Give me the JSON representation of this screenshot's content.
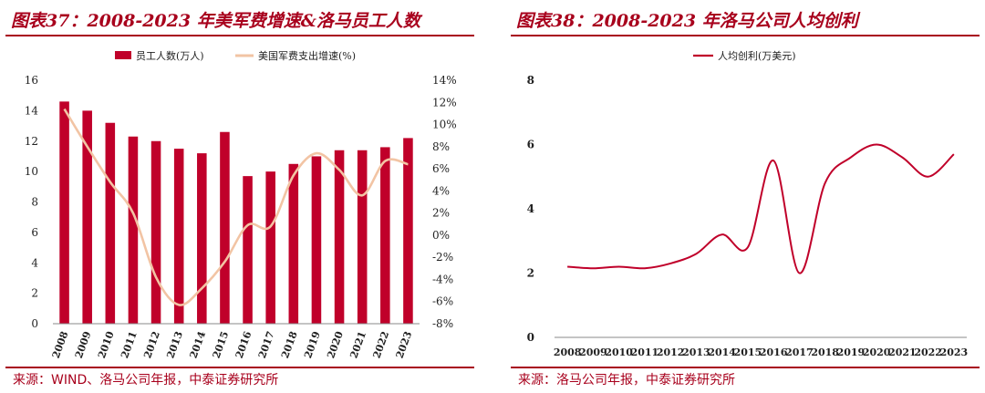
{
  "left": {
    "title": "图表37：2008-2023 年美军费增速&洛马员工人数",
    "source": "来源：WIND、洛马公司年报，中泰证券研究所",
    "chart_data": {
      "type": "bar+line",
      "categories": [
        "2008",
        "2009",
        "2010",
        "2011",
        "2012",
        "2013",
        "2014",
        "2015",
        "2016",
        "2017",
        "2018",
        "2019",
        "2020",
        "2021",
        "2022",
        "2023"
      ],
      "series": [
        {
          "name": "员工人数(万人)",
          "type": "bar",
          "axis": "left",
          "color": "#c0002a",
          "values": [
            14.6,
            14.0,
            13.2,
            12.3,
            12.0,
            11.5,
            11.2,
            12.6,
            9.7,
            10.0,
            10.5,
            11.0,
            11.4,
            11.4,
            11.6,
            12.2
          ]
        },
        {
          "name": "美国军费支出增速(%)",
          "type": "line",
          "axis": "right",
          "color": "#f2c4a4",
          "values": [
            11.4,
            8.0,
            4.8,
            2.0,
            -3.8,
            -6.3,
            -4.8,
            -2.4,
            0.9,
            0.8,
            5.4,
            7.4,
            5.9,
            3.6,
            6.7,
            6.4
          ]
        }
      ],
      "yleft": {
        "min": 0,
        "max": 16,
        "ticks": [
          "0",
          "2",
          "4",
          "6",
          "8",
          "10",
          "12",
          "14",
          "16"
        ]
      },
      "yright": {
        "min": -8,
        "max": 14,
        "ticks": [
          "-8%",
          "-6%",
          "-4%",
          "-2%",
          "0%",
          "2%",
          "4%",
          "6%",
          "8%",
          "10%",
          "12%",
          "14%"
        ]
      },
      "legend": "top"
    }
  },
  "right": {
    "title": "图表38：2008-2023 年洛马公司人均创利",
    "source": "来源：洛马公司年报，中泰证券研究所",
    "chart_data": {
      "type": "line",
      "categories": [
        "2008",
        "2009",
        "2010",
        "2011",
        "2012",
        "2013",
        "2014",
        "2015",
        "2016",
        "2017",
        "2018",
        "2019",
        "2020",
        "2021",
        "2022",
        "2023"
      ],
      "series": [
        {
          "name": "人均创利(万美元)",
          "color": "#c0002a",
          "values": [
            2.2,
            2.15,
            2.2,
            2.15,
            2.3,
            2.6,
            3.2,
            2.8,
            5.5,
            2.0,
            4.8,
            5.6,
            6.0,
            5.6,
            5.0,
            5.7
          ]
        }
      ],
      "y": {
        "min": 0,
        "max": 8,
        "ticks": [
          "0",
          "2",
          "4",
          "6",
          "8"
        ]
      },
      "legend": "top"
    }
  }
}
